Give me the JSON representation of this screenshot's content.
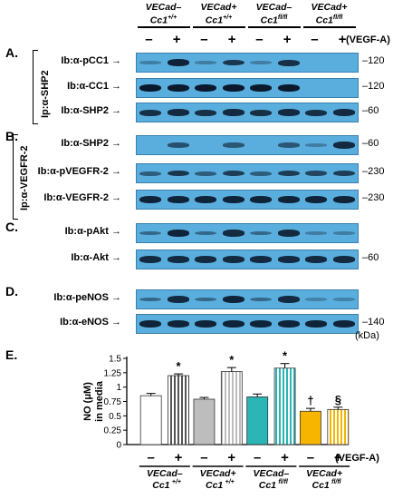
{
  "genotypes": [
    {
      "main": "VECad–",
      "sub": "Cc1",
      "sup": "+/+"
    },
    {
      "main": "VECad+",
      "sub": "Cc1",
      "sup": "+/+"
    },
    {
      "main": "VECad–",
      "sub": "Cc1",
      "sup": "fl/fl"
    },
    {
      "main": "VECad+",
      "sub": "Cc1",
      "sup": "fl/fl"
    }
  ],
  "treatment_signs": [
    "–",
    "+",
    "–",
    "+",
    "–",
    "+",
    "–",
    "+"
  ],
  "treatment_label": "(VEGF-A)",
  "panels": {
    "A": {
      "letter": "A.",
      "ip_label": "Ip:α-SHP2"
    },
    "B": {
      "letter": "B.",
      "ip_label": "Ip:α-VEGFR-2"
    },
    "C": {
      "letter": "C."
    },
    "D": {
      "letter": "D."
    },
    "E": {
      "letter": "E."
    }
  },
  "blots": [
    {
      "label": "Ib:α-pCC1",
      "mw": "120",
      "bands": [
        0.1,
        0.9,
        0.1,
        0.75,
        0.1,
        0.8,
        0,
        0
      ]
    },
    {
      "label": "Ib:α-CC1",
      "mw": "120",
      "bands": [
        1,
        1,
        1,
        1,
        1,
        1,
        0,
        0
      ]
    },
    {
      "label": "Ib:α-SHP2",
      "mw": "60",
      "bands": [
        0.8,
        0.85,
        0.8,
        0.85,
        0.8,
        0.85,
        0.8,
        0.85
      ]
    },
    {
      "label": "Ib:α-SHP2",
      "mw": "60",
      "bands": [
        0,
        0.5,
        0,
        0.45,
        0,
        0.45,
        0.1,
        0.85
      ]
    },
    {
      "label": "Ib:α-pVEGFR-2",
      "mw": "230",
      "bands": [
        0.4,
        0.75,
        0.4,
        0.7,
        0.4,
        0.7,
        0.6,
        0.7
      ]
    },
    {
      "label": "Ib:α-VEGFR-2",
      "mw": "230",
      "bands": [
        0.9,
        0.9,
        0.9,
        0.9,
        0.9,
        0.9,
        0.9,
        0.9
      ]
    },
    {
      "label": "Ib:α-pAkt",
      "mw": "",
      "bands": [
        0.3,
        0.9,
        0.3,
        0.85,
        0.3,
        0.85,
        0.1,
        0.1
      ]
    },
    {
      "label": "Ib:α-Akt",
      "mw": "60",
      "bands": [
        0.85,
        0.85,
        0.85,
        0.85,
        0.85,
        0.85,
        0.85,
        0.85
      ]
    },
    {
      "label": "Ib:α-peNOS",
      "mw": "",
      "bands": [
        0.3,
        0.85,
        0.3,
        0.9,
        0.3,
        0.85,
        0.05,
        0.05
      ]
    },
    {
      "label": "Ib:α-eNOS",
      "mw": "140",
      "bands": [
        0.9,
        0.9,
        0.9,
        0.9,
        0.9,
        0.9,
        0.9,
        0.9
      ]
    }
  ],
  "kda_label": "(kDa)",
  "chart_data": {
    "type": "bar",
    "ylabel": "NO (μM)\nin media",
    "ylim": [
      0,
      1.5
    ],
    "yticks": [
      "0",
      "0.25",
      "0.5",
      "0.75",
      "1",
      "1.25",
      "1.5"
    ],
    "values": [
      0.85,
      1.2,
      0.79,
      1.27,
      0.83,
      1.33,
      0.58,
      0.61
    ],
    "errors": [
      0.04,
      0.03,
      0.03,
      0.07,
      0.05,
      0.08,
      0.05,
      0.04
    ],
    "colors": [
      "#ffffff",
      "#ffffff",
      "#bdbdbd",
      "#bdbdbd",
      "#2bb5b5",
      "#2bb5b5",
      "#f7b500",
      "#f7b500"
    ],
    "hatch": [
      false,
      true,
      false,
      true,
      false,
      true,
      false,
      true
    ],
    "annotations": [
      "",
      "*",
      "",
      "*",
      "",
      "*",
      "†",
      "§"
    ],
    "grid": false
  }
}
